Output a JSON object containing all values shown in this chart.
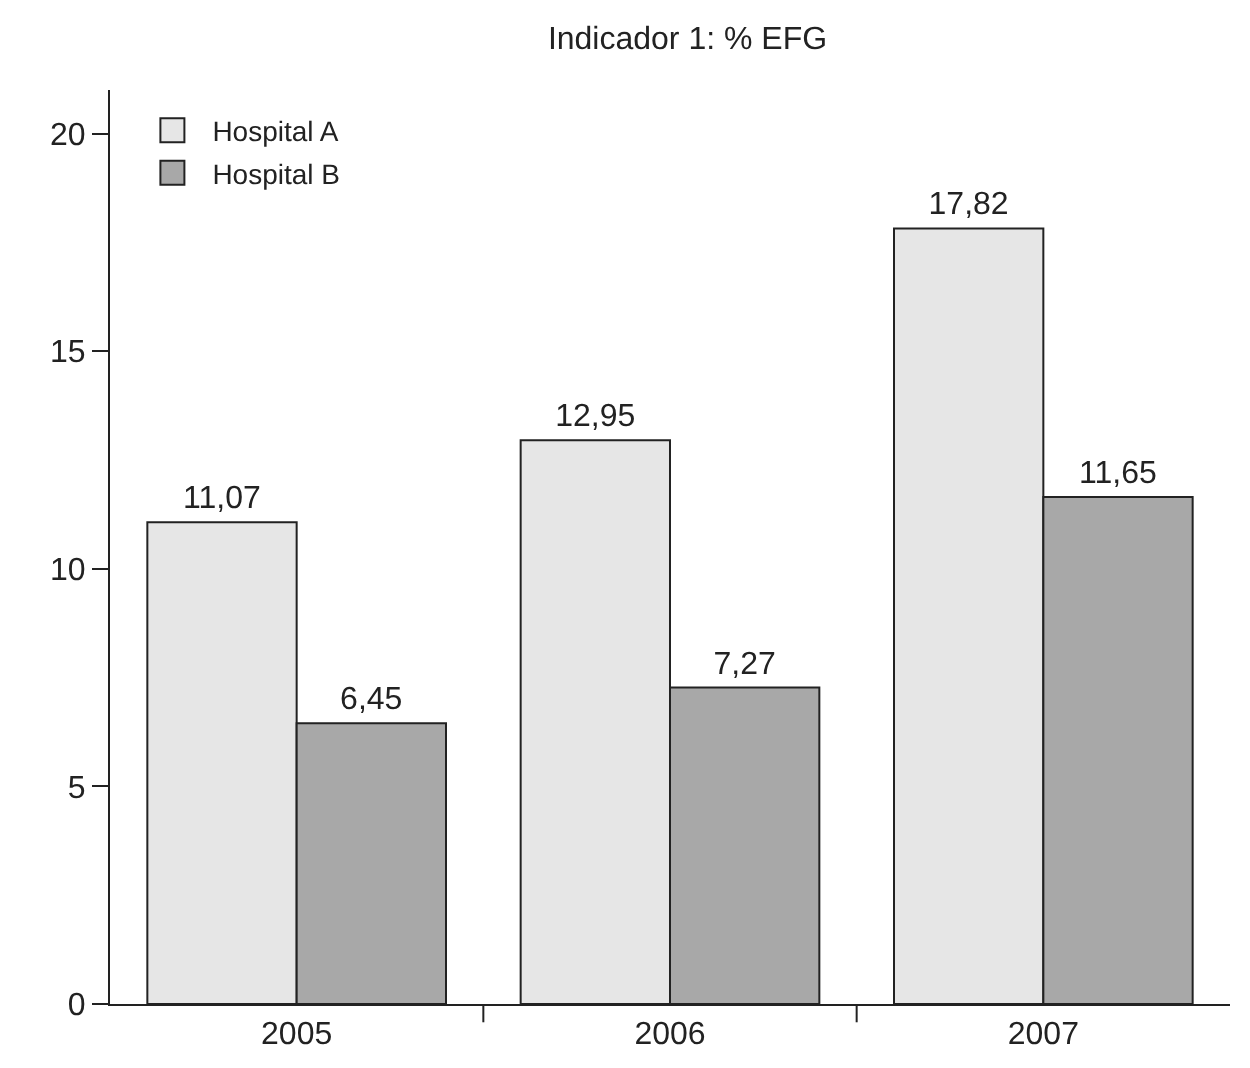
{
  "chart_data": {
    "type": "bar",
    "title": "Indicador 1: % EFG",
    "categories": [
      "2005",
      "2006",
      "2007"
    ],
    "series": [
      {
        "name": "Hospital A",
        "color": "#e6e6e6",
        "values": [
          11.07,
          12.95,
          17.82
        ],
        "value_labels": [
          "11,07",
          "12,95",
          "17,82"
        ]
      },
      {
        "name": "Hospital B",
        "color": "#a8a8a8",
        "values": [
          6.45,
          7.27,
          11.65
        ],
        "value_labels": [
          "6,45",
          "7,27",
          "11,65"
        ]
      }
    ],
    "ylim": [
      0,
      21
    ],
    "yticks": [
      0,
      5,
      10,
      15,
      20
    ],
    "grid": false,
    "legend": "top left"
  }
}
